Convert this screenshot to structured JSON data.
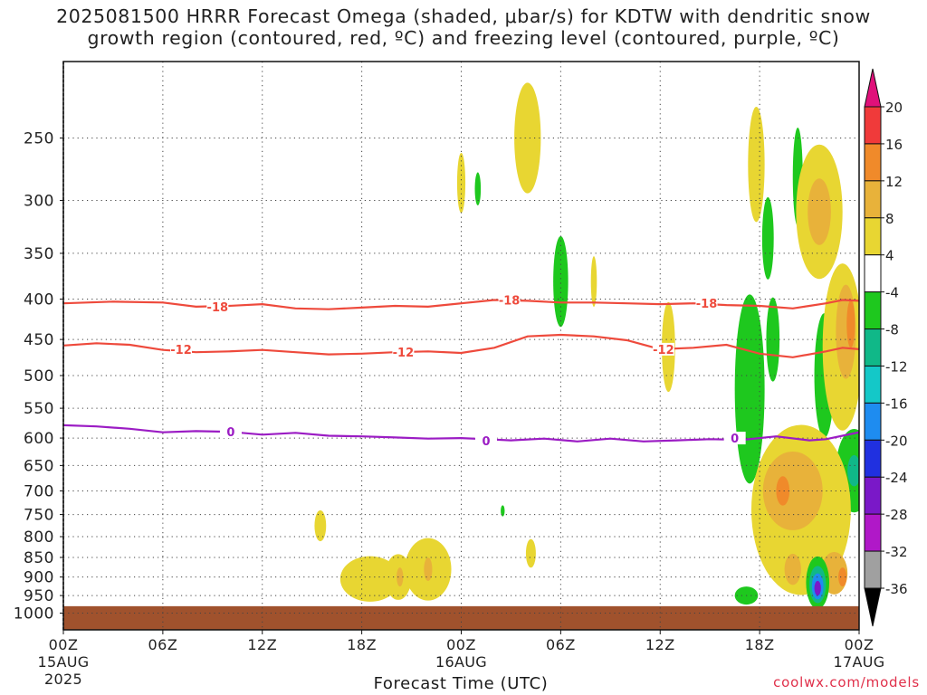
{
  "title": {
    "line1": "2025081500 HRRR Forecast Omega (shaded, μbar/s) for KDTW with dendritic snow",
    "line2": "growth region (contoured, red, ºC) and freezing level (contoured, purple, ºC)"
  },
  "credit": "coolwx.com/models",
  "chart_data": {
    "type": "heatmap",
    "xlabel": "Forecast Time (UTC)",
    "ylabel": "",
    "x_range_hours": [
      0,
      48
    ],
    "y_range_hPa": [
      200,
      1050
    ],
    "y_scale": "log-pressure (inverted)",
    "grid": true,
    "x_ticks": [
      {
        "hour": 0,
        "label": "00Z",
        "sub1": "15AUG",
        "sub2": "2025"
      },
      {
        "hour": 6,
        "label": "06Z",
        "sub1": "",
        "sub2": ""
      },
      {
        "hour": 12,
        "label": "12Z",
        "sub1": "",
        "sub2": ""
      },
      {
        "hour": 18,
        "label": "18Z",
        "sub1": "",
        "sub2": ""
      },
      {
        "hour": 24,
        "label": "00Z",
        "sub1": "16AUG",
        "sub2": ""
      },
      {
        "hour": 30,
        "label": "06Z",
        "sub1": "",
        "sub2": ""
      },
      {
        "hour": 36,
        "label": "12Z",
        "sub1": "",
        "sub2": ""
      },
      {
        "hour": 42,
        "label": "18Z",
        "sub1": "",
        "sub2": ""
      },
      {
        "hour": 48,
        "label": "00Z",
        "sub1": "17AUG",
        "sub2": ""
      }
    ],
    "y_ticks": [
      250,
      300,
      350,
      400,
      450,
      500,
      550,
      600,
      650,
      700,
      750,
      800,
      850,
      900,
      950,
      1000
    ],
    "colorbar": {
      "labels": [
        "20",
        "16",
        "12",
        "8",
        "4",
        "-4",
        "-8",
        "-12",
        "-16",
        "-20",
        "-24",
        "-28",
        "-32",
        "-36"
      ],
      "bins": [
        {
          "from": 16,
          "to": 20,
          "color": "#f03a3a"
        },
        {
          "from": 12,
          "to": 16,
          "color": "#f08a2a"
        },
        {
          "from": 8,
          "to": 12,
          "color": "#e8b23a"
        },
        {
          "from": 4,
          "to": 8,
          "color": "#e8d632"
        },
        {
          "from": -4,
          "to": 4,
          "color": "#ffffff"
        },
        {
          "from": -8,
          "to": -4,
          "color": "#1ec81e"
        },
        {
          "from": -12,
          "to": -8,
          "color": "#10b888"
        },
        {
          "from": -16,
          "to": -12,
          "color": "#14c8c8"
        },
        {
          "from": -20,
          "to": -16,
          "color": "#1e8cf0"
        },
        {
          "from": -24,
          "to": -20,
          "color": "#2030e0"
        },
        {
          "from": -28,
          "to": -24,
          "color": "#7a18c8"
        },
        {
          "from": -32,
          "to": -28,
          "color": "#b018c8"
        },
        {
          "from": -36,
          "to": -32,
          "color": "#a0a0a0"
        }
      ],
      "over_color": "#e0107a",
      "under_color": "#000000"
    },
    "contours": [
      {
        "name": "-18",
        "color": "#ee4a3c",
        "points": [
          [
            0,
            405
          ],
          [
            3,
            403
          ],
          [
            6,
            404
          ],
          [
            8,
            409
          ],
          [
            10,
            408
          ],
          [
            12,
            406
          ],
          [
            14,
            411
          ],
          [
            16,
            412
          ],
          [
            18,
            410
          ],
          [
            20,
            408
          ],
          [
            22,
            409
          ],
          [
            24,
            405
          ],
          [
            26,
            401
          ],
          [
            28,
            402
          ],
          [
            30,
            404
          ],
          [
            32,
            404
          ],
          [
            34,
            405
          ],
          [
            36,
            406
          ],
          [
            38,
            405
          ],
          [
            40,
            407
          ],
          [
            42,
            408
          ],
          [
            44,
            411
          ],
          [
            45,
            408
          ],
          [
            46,
            405
          ],
          [
            47,
            401
          ],
          [
            48,
            402
          ]
        ],
        "labels": [
          [
            9.3,
            409
          ],
          [
            26.9,
            401
          ],
          [
            38.8,
            405
          ]
        ]
      },
      {
        "name": "-12",
        "color": "#ee4a3c",
        "points": [
          [
            0,
            458
          ],
          [
            2,
            455
          ],
          [
            4,
            457
          ],
          [
            6,
            464
          ],
          [
            8,
            467
          ],
          [
            10,
            466
          ],
          [
            12,
            464
          ],
          [
            14,
            467
          ],
          [
            16,
            470
          ],
          [
            18,
            469
          ],
          [
            20,
            467
          ],
          [
            22,
            466
          ],
          [
            24,
            468
          ],
          [
            26,
            461
          ],
          [
            28,
            446
          ],
          [
            30,
            444
          ],
          [
            32,
            446
          ],
          [
            34,
            451
          ],
          [
            36,
            463
          ],
          [
            38,
            461
          ],
          [
            40,
            457
          ],
          [
            42,
            469
          ],
          [
            44,
            474
          ],
          [
            46,
            466
          ],
          [
            47,
            461
          ],
          [
            48,
            463
          ]
        ],
        "labels": [
          [
            7.1,
            463
          ],
          [
            20.5,
            467
          ],
          [
            36.2,
            463
          ]
        ]
      },
      {
        "name": "0",
        "color": "#9b1cc4",
        "points": [
          [
            0,
            578
          ],
          [
            2,
            580
          ],
          [
            4,
            584
          ],
          [
            6,
            590
          ],
          [
            8,
            588
          ],
          [
            10,
            589
          ],
          [
            12,
            594
          ],
          [
            14,
            591
          ],
          [
            16,
            596
          ],
          [
            18,
            597
          ],
          [
            20,
            599
          ],
          [
            22,
            601
          ],
          [
            24,
            600
          ],
          [
            25.5,
            602
          ],
          [
            27,
            604
          ],
          [
            29,
            601
          ],
          [
            31,
            606
          ],
          [
            33,
            601
          ],
          [
            35,
            606
          ],
          [
            37,
            604
          ],
          [
            39,
            602
          ],
          [
            41,
            603
          ],
          [
            43,
            597
          ],
          [
            45,
            604
          ],
          [
            46,
            602
          ],
          [
            47,
            596
          ],
          [
            48,
            590
          ]
        ],
        "labels": [
          [
            10.1,
            589
          ],
          [
            25.5,
            605
          ],
          [
            40.5,
            600
          ]
        ]
      }
    ],
    "shaded_regions": [
      {
        "bin_color": "#e8d632",
        "center": [
          28.0,
          250
        ],
        "rx_h": 0.8,
        "ry_hPa": 40
      },
      {
        "bin_color": "#e8d632",
        "center": [
          24.0,
          285
        ],
        "rx_h": 0.25,
        "ry_hPa": 25
      },
      {
        "bin_color": "#1ec81e",
        "center": [
          25.0,
          290
        ],
        "rx_h": 0.18,
        "ry_hPa": 14
      },
      {
        "bin_color": "#1ec81e",
        "center": [
          30.0,
          380
        ],
        "rx_h": 0.45,
        "ry_hPa": 50
      },
      {
        "bin_color": "#e8d632",
        "center": [
          32.0,
          380
        ],
        "rx_h": 0.18,
        "ry_hPa": 28
      },
      {
        "bin_color": "#e8d632",
        "center": [
          36.5,
          460
        ],
        "rx_h": 0.4,
        "ry_hPa": 60
      },
      {
        "bin_color": "#e8d632",
        "center": [
          41.8,
          270
        ],
        "rx_h": 0.5,
        "ry_hPa": 45
      },
      {
        "bin_color": "#1ec81e",
        "center": [
          42.5,
          335
        ],
        "rx_h": 0.35,
        "ry_hPa": 40
      },
      {
        "bin_color": "#1ec81e",
        "center": [
          41.4,
          520
        ],
        "rx_h": 0.9,
        "ry_hPa": 140
      },
      {
        "bin_color": "#1ec81e",
        "center": [
          42.8,
          450
        ],
        "rx_h": 0.4,
        "ry_hPa": 55
      },
      {
        "bin_color": "#1ec81e",
        "center": [
          44.3,
          280
        ],
        "rx_h": 0.3,
        "ry_hPa": 40
      },
      {
        "bin_color": "#1ec81e",
        "center": [
          45.9,
          500
        ],
        "rx_h": 0.6,
        "ry_hPa": 90
      },
      {
        "bin_color": "#e8d632",
        "center": [
          45.6,
          310
        ],
        "rx_h": 1.4,
        "ry_hPa": 60
      },
      {
        "bin_color": "#e8b23a",
        "center": [
          45.6,
          310
        ],
        "rx_h": 0.7,
        "ry_hPa": 30
      },
      {
        "bin_color": "#e8d632",
        "center": [
          47.0,
          460
        ],
        "rx_h": 1.2,
        "ry_hPa": 110
      },
      {
        "bin_color": "#e8b23a",
        "center": [
          47.2,
          440
        ],
        "rx_h": 0.6,
        "ry_hPa": 60
      },
      {
        "bin_color": "#f08a2a",
        "center": [
          47.5,
          430
        ],
        "rx_h": 0.25,
        "ry_hPa": 30
      },
      {
        "bin_color": "#1ec81e",
        "center": [
          47.7,
          660
        ],
        "rx_h": 1.1,
        "ry_hPa": 80
      },
      {
        "bin_color": "#10b888",
        "center": [
          47.7,
          660
        ],
        "rx_h": 0.4,
        "ry_hPa": 30
      },
      {
        "bin_color": "#e8d632",
        "center": [
          44.5,
          740
        ],
        "rx_h": 3.0,
        "ry_hPa": 180
      },
      {
        "bin_color": "#e8b23a",
        "center": [
          44.0,
          700
        ],
        "rx_h": 1.8,
        "ry_hPa": 80
      },
      {
        "bin_color": "#f08a2a",
        "center": [
          43.4,
          700
        ],
        "rx_h": 0.4,
        "ry_hPa": 30
      },
      {
        "bin_color": "#e8b23a",
        "center": [
          46.5,
          890
        ],
        "rx_h": 0.8,
        "ry_hPa": 55
      },
      {
        "bin_color": "#f08a2a",
        "center": [
          47.0,
          900
        ],
        "rx_h": 0.25,
        "ry_hPa": 25
      },
      {
        "bin_color": "#e8b23a",
        "center": [
          44.0,
          880
        ],
        "rx_h": 0.5,
        "ry_hPa": 40
      },
      {
        "bin_color": "#1ec81e",
        "center": [
          45.5,
          915
        ],
        "rx_h": 0.7,
        "ry_hPa": 70
      },
      {
        "bin_color": "#10b888",
        "center": [
          45.5,
          920
        ],
        "rx_h": 0.5,
        "ry_hPa": 50
      },
      {
        "bin_color": "#1e8cf0",
        "center": [
          45.5,
          925
        ],
        "rx_h": 0.35,
        "ry_hPa": 35
      },
      {
        "bin_color": "#7a18c8",
        "center": [
          45.5,
          930
        ],
        "rx_h": 0.2,
        "ry_hPa": 20
      },
      {
        "bin_color": "#1ec81e",
        "center": [
          41.2,
          950
        ],
        "rx_h": 0.7,
        "ry_hPa": 25
      },
      {
        "bin_color": "#e8d632",
        "center": [
          15.5,
          775
        ],
        "rx_h": 0.35,
        "ry_hPa": 35
      },
      {
        "bin_color": "#e8d632",
        "center": [
          18.5,
          905
        ],
        "rx_h": 1.8,
        "ry_hPa": 60
      },
      {
        "bin_color": "#e8d632",
        "center": [
          20.2,
          900
        ],
        "rx_h": 0.8,
        "ry_hPa": 60
      },
      {
        "bin_color": "#e8b23a",
        "center": [
          20.3,
          900
        ],
        "rx_h": 0.2,
        "ry_hPa": 25
      },
      {
        "bin_color": "#e8d632",
        "center": [
          22.0,
          880
        ],
        "rx_h": 1.4,
        "ry_hPa": 80
      },
      {
        "bin_color": "#e8b23a",
        "center": [
          22.0,
          880
        ],
        "rx_h": 0.25,
        "ry_hPa": 30
      },
      {
        "bin_color": "#e8d632",
        "center": [
          28.2,
          840
        ],
        "rx_h": 0.3,
        "ry_hPa": 35
      },
      {
        "bin_color": "#1ec81e",
        "center": [
          26.5,
          742
        ],
        "rx_h": 0.12,
        "ry_hPa": 12
      }
    ],
    "ground": {
      "from_hPa": 980,
      "color": "#a0522d"
    }
  }
}
